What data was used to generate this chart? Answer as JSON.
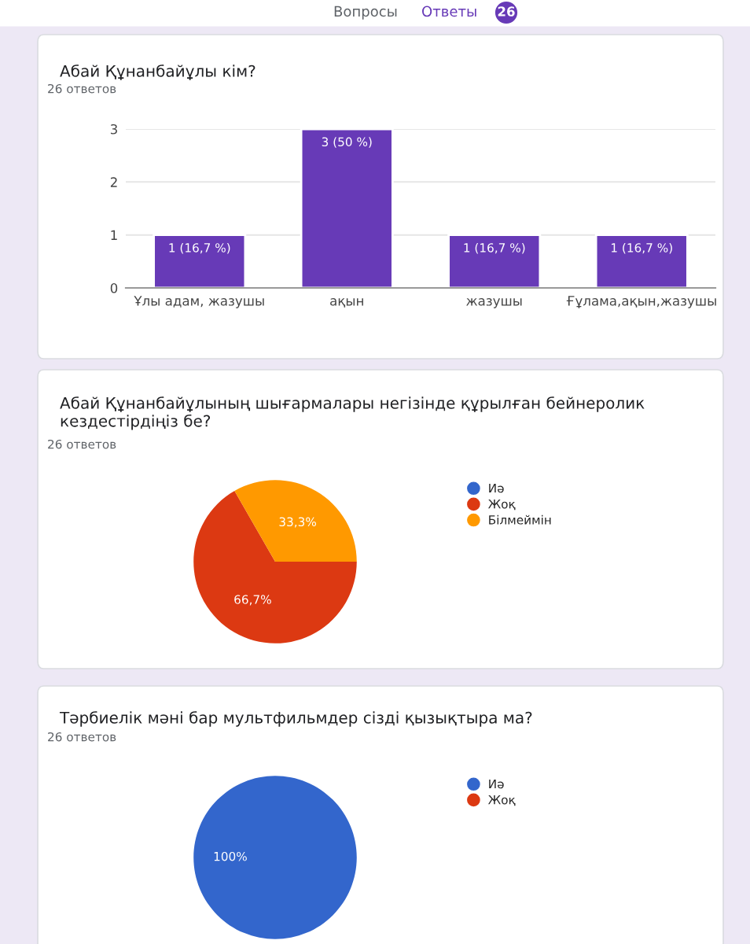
{
  "chart_data": [
    {
      "type": "bar",
      "title": "Абай Құнанбайұлы кім?",
      "subtitle": "26 ответов",
      "annotations": [
        "Вопросы",
        "Ответы",
        "26"
      ],
      "categories": [
        "Ұлы адам, жазушы",
        "ақын",
        "жазушы",
        "Ғұлама,ақын,жазушы"
      ],
      "values": [
        1,
        3,
        1,
        1
      ],
      "value_labels": [
        "1 (16,7 %)",
        "3 (50 %)",
        "1 (16,7 %)",
        "1 (16,7 %)"
      ],
      "color": "#673ab7",
      "ylim": [
        0,
        3
      ],
      "yticks": [
        0,
        1,
        2,
        3
      ],
      "grid": "y"
    },
    {
      "type": "pie",
      "title": "Абай Құнанбайұлының шығармалары негізінде құрылған бейнеролик кездестірдіңіз бе?",
      "subtitle": "26 ответов",
      "categories": [
        "Иә",
        "Жоқ",
        "Білмеймін"
      ],
      "values": [
        0,
        66.7,
        33.3
      ],
      "value_labels": [
        null,
        "66,7%",
        "33,3%"
      ],
      "colors": [
        "#3366cc",
        "#dc3912",
        "#ff9900"
      ],
      "legend": "right"
    },
    {
      "type": "pie",
      "title": "Тәрбиелік мәні бар мультфильмдер сізді қызықтыра ма?",
      "subtitle": "26 ответов",
      "categories": [
        "Иә",
        "Жоқ"
      ],
      "values": [
        100,
        0
      ],
      "value_labels": [
        "100%",
        null
      ],
      "colors": [
        "#3366cc",
        "#dc3912"
      ],
      "legend": "right"
    }
  ]
}
